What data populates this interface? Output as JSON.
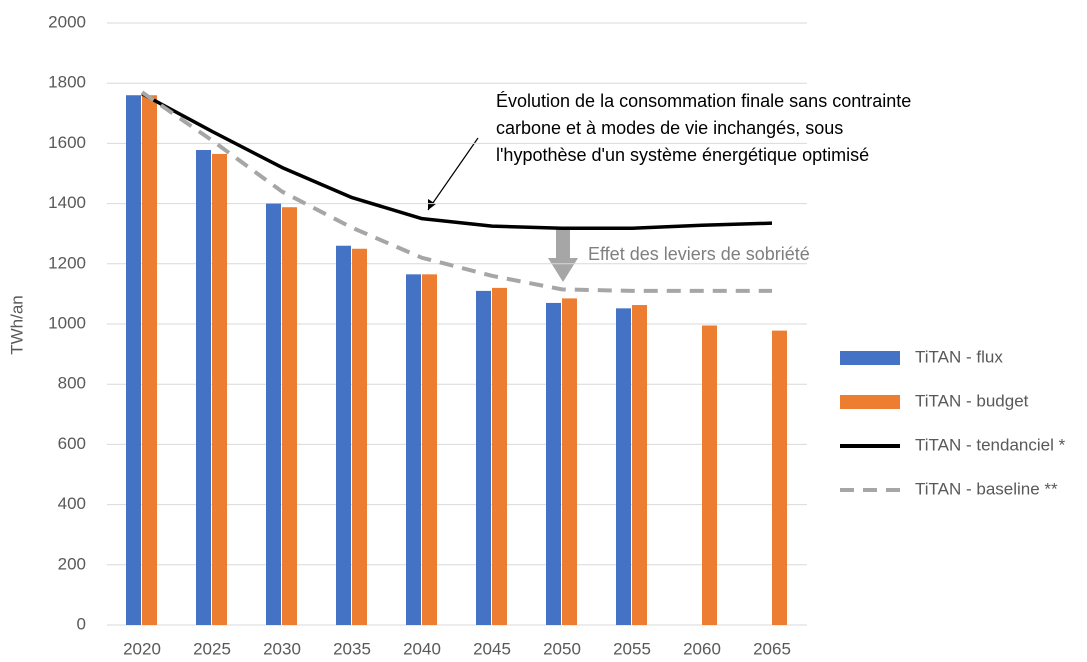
{
  "chart_data": {
    "type": "bar",
    "y_label": "TWh/an",
    "categories": [
      "2020",
      "2025",
      "2030",
      "2035",
      "2040",
      "2045",
      "2050",
      "2055",
      "2060",
      "2065"
    ],
    "series": [
      {
        "name": "TiTAN - flux",
        "color": "#4472c4",
        "kind": "bar",
        "values": [
          1760,
          1578,
          1400,
          1260,
          1165,
          1110,
          1070,
          1052,
          null,
          null
        ]
      },
      {
        "name": "TiTAN - budget",
        "color": "#ed7d31",
        "kind": "bar",
        "values": [
          1760,
          1565,
          1388,
          1250,
          1165,
          1120,
          1085,
          1063,
          995,
          978
        ]
      },
      {
        "name": "TiTAN - tendanciel *",
        "color": "#000000",
        "kind": "line",
        "values": [
          1765,
          1640,
          1520,
          1420,
          1350,
          1325,
          1318,
          1318,
          1328,
          1335
        ]
      },
      {
        "name": "TiTAN - baseline **",
        "color": "#a6a6a6",
        "kind": "dashed",
        "values": [
          1770,
          1610,
          1440,
          1320,
          1220,
          1160,
          1115,
          1110,
          1110,
          1110
        ]
      }
    ],
    "ylim": [
      0,
      2000
    ],
    "yticks": [
      0,
      200,
      400,
      600,
      800,
      1000,
      1200,
      1400,
      1600,
      1800,
      2000
    ],
    "grid": true,
    "legend": "right",
    "annotations": [
      {
        "lines": [
          "Évolution de la consommation finale sans contrainte",
          "carbone et à modes de vie inchangés, sous",
          "l'hypothèse d'un système énergétique optimisé"
        ]
      },
      {
        "lines": [
          "Effet des leviers de sobriété"
        ]
      }
    ]
  }
}
